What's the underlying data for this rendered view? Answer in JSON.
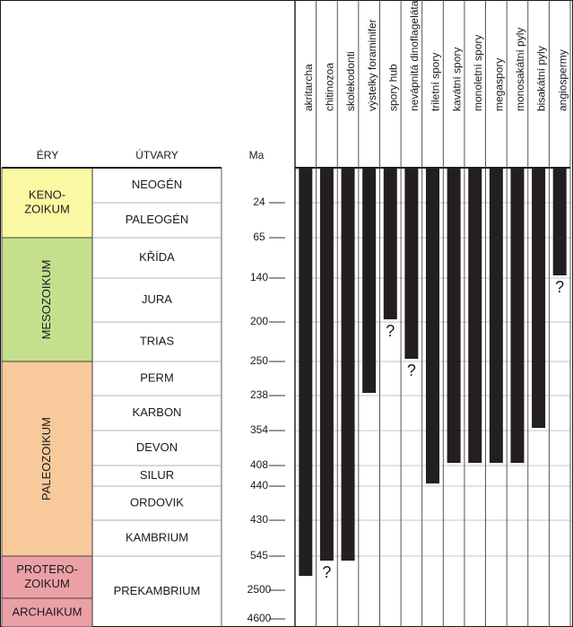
{
  "chart_data": {
    "type": "bar",
    "orientation": "vertical-range",
    "headers": {
      "eras": "ÉRY",
      "formations": "ÚTVARY",
      "ma": "Ma"
    },
    "eras": [
      {
        "label": [
          "KENO-",
          "ZOIKUM"
        ],
        "color": "#fbf8a3",
        "from": "NEOGÉN",
        "to": "PALEOGÉN",
        "rotated": false
      },
      {
        "label": [
          "MESOZOIKUM"
        ],
        "color": "#c4e08d",
        "from": "KŘÍDA",
        "to": "TRIAS",
        "rotated": true
      },
      {
        "label": [
          "PALEOZOIKUM"
        ],
        "color": "#f7c99b",
        "from": "PERM",
        "to": "KAMBRIUM",
        "rotated": true
      },
      {
        "label": [
          "PROTERO-",
          "ZOIKUM"
        ],
        "color": "#eba0a6",
        "from": "PREKAMBRIUM",
        "to": "PREKAMBRIUM",
        "part": "top",
        "rotated": false
      },
      {
        "label": [
          "ARCHAIKUM"
        ],
        "color": "#eba0a6",
        "from": "PREKAMBRIUM",
        "to": "PREKAMBRIUM",
        "part": "bottom",
        "rotated": false
      }
    ],
    "periods": [
      "NEOGÉN",
      "PALEOGÉN",
      "KŘÍDA",
      "JURA",
      "TRIAS",
      "PERM",
      "KARBON",
      "DEVON",
      "SILUR",
      "ORDOVIK",
      "KAMBRIUM",
      "PREKAMBRIUM"
    ],
    "ma_ticks": [
      "24",
      "65",
      "140",
      "200",
      "250",
      "238",
      "354",
      "408",
      "440",
      "430",
      "545",
      "2500",
      "4600"
    ],
    "series": [
      {
        "name": "akritarcha",
        "from": "PREKAMBRIUM",
        "to": "NEOGÉN",
        "question": false
      },
      {
        "name": "chitinozoa",
        "from": "KAMBRIUM",
        "to": "DEVON",
        "question": true
      },
      {
        "name": "skolekodonti",
        "from": "KAMBRIUM",
        "to": "NEOGÉN",
        "question": false
      },
      {
        "name": "výstelky foraminifer",
        "from": "PERM",
        "to": "NEOGÉN",
        "question": false
      },
      {
        "name": "spory hub",
        "from": "JURA",
        "to": "NEOGÉN",
        "question": true
      },
      {
        "name": "nevápnitá dinoflageláta",
        "from": "TRIAS",
        "to": "NEOGÉN",
        "question": true
      },
      {
        "name": "triletní spory",
        "from": "SILUR",
        "to": "NEOGÉN",
        "question": false
      },
      {
        "name": "kavátní spory",
        "from": "DEVON",
        "to": "NEOGÉN",
        "question": false
      },
      {
        "name": "monoletní spory",
        "from": "DEVON",
        "to": "NEOGÉN",
        "question": false
      },
      {
        "name": "megaspory",
        "from": "DEVON",
        "to": "NEOGÉN",
        "question": false
      },
      {
        "name": "monosakátní pyly",
        "from": "DEVON",
        "to": "NEOGÉN",
        "question": false
      },
      {
        "name": "bisakátní pyly",
        "from": "KARBON",
        "to": "NEOGÉN",
        "question": false
      },
      {
        "name": "angiospermy",
        "from": "KŘÍDA",
        "to": "NEOGÉN",
        "question": true
      }
    ],
    "question_mark": "?",
    "bar_color": "#231f20"
  }
}
